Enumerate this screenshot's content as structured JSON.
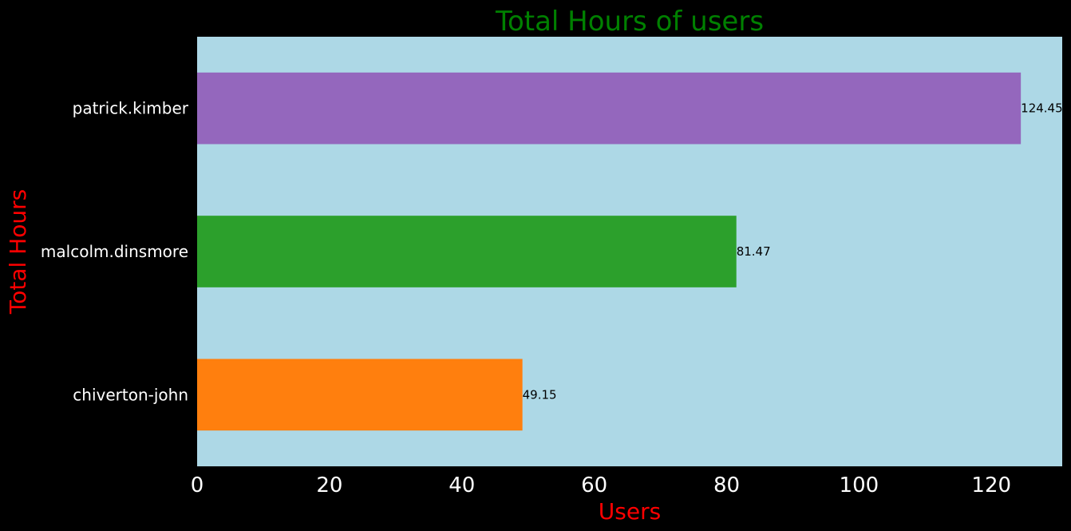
{
  "colors": {
    "background": "#000000",
    "plot_background": "#add8e6",
    "title": "#008000",
    "axis_title": "#ff0000",
    "tick_text": "#ffffff",
    "value_text": "#000000"
  },
  "chart_data": {
    "type": "bar",
    "orientation": "horizontal",
    "title": "Total Hours of users",
    "xlabel": "Users",
    "ylabel": "Total Hours",
    "categories": [
      "chiverton-john",
      "malcolm.dinsmore",
      "patrick.kimber"
    ],
    "values": [
      49.15,
      81.47,
      124.45
    ],
    "value_labels": [
      "49.15",
      "81.47",
      "124.45"
    ],
    "bar_colors": [
      "#ff7f0e",
      "#2ca02c",
      "#9467bd"
    ],
    "xlim": [
      0,
      130.7
    ],
    "xticks": [
      0,
      20,
      40,
      60,
      80,
      100,
      120
    ],
    "xtick_labels": [
      "0",
      "20",
      "40",
      "60",
      "80",
      "100",
      "120"
    ],
    "grid": false,
    "legend": "none"
  }
}
